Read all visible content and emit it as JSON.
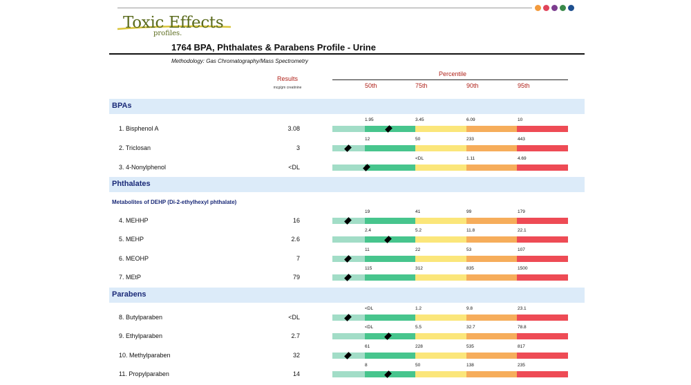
{
  "logo": {
    "main": "Toxic Effects",
    "sub": "profiles."
  },
  "brand_dots": [
    "#f39a3c",
    "#e0445a",
    "#7c3d8f",
    "#3a8a4a",
    "#1e4f8f"
  ],
  "title": "1764 BPA, Phthalates & Parabens Profile - Urine",
  "methodology": "Methodology: Gas Chromatography/Mass Spectrometry",
  "results_header": "Results",
  "results_units": "mcg/gm creatinine",
  "percentile_header": "Percentile",
  "percentile_columns": [
    "50th",
    "75th",
    "90th",
    "95th"
  ],
  "colors": {
    "mint": "#a2ddc7",
    "green": "#47c58d",
    "yellow": "#fbe67a",
    "orange": "#f6ad5b",
    "red": "#ee4b55"
  },
  "sections": [
    {
      "name": "BPAs",
      "subsection": "",
      "rows": [
        {
          "index": "1.",
          "name": "Bisphenol A",
          "result": "3.08",
          "ticks": [
            "1.95",
            "3.45",
            "6.09",
            "10"
          ],
          "marker": 0.24
        },
        {
          "index": "2.",
          "name": "Triclosan",
          "result": "3",
          "ticks": [
            "12",
            "50",
            "233",
            "443"
          ],
          "marker": 0.065
        },
        {
          "index": "3.",
          "name": "4-Nonylphenol",
          "result": "<DL",
          "ticks": [
            "",
            "<DL",
            "1.11",
            "4.69"
          ],
          "marker": 0.145
        }
      ]
    },
    {
      "name": "Phthalates",
      "subsection": "Metabolites of DEHP (Di-2-ethylhexyl phthalate)",
      "rows": [
        {
          "index": "4.",
          "name": "MEHHP",
          "result": "16",
          "ticks": [
            "19",
            "41",
            "99",
            "179"
          ],
          "marker": 0.065
        },
        {
          "index": "5.",
          "name": "MEHP",
          "result": "2.6",
          "ticks": [
            "2.4",
            "5.2",
            "11.8",
            "22.1"
          ],
          "marker": 0.235
        },
        {
          "index": "6.",
          "name": "MEOHP",
          "result": "7",
          "ticks": [
            "11",
            "22",
            "53",
            "107"
          ],
          "marker": 0.065
        },
        {
          "index": "7.",
          "name": "MEtP",
          "result": "79",
          "ticks": [
            "115",
            "312",
            "835",
            "1500"
          ],
          "marker": 0.065
        }
      ]
    },
    {
      "name": "Parabens",
      "subsection": "",
      "rows": [
        {
          "index": "8.",
          "name": "Butylparaben",
          "result": "<DL",
          "ticks": [
            "<DL",
            "1.2",
            "9.8",
            "23.1"
          ],
          "marker": 0.065
        },
        {
          "index": "9.",
          "name": "Ethylparaben",
          "result": "2.7",
          "ticks": [
            "<DL",
            "5.5",
            "32.7",
            "78.8"
          ],
          "marker": 0.235
        },
        {
          "index": "10.",
          "name": "Methylparaben",
          "result": "32",
          "ticks": [
            "61",
            "228",
            "535",
            "817"
          ],
          "marker": 0.065
        },
        {
          "index": "11.",
          "name": "Propylparaben",
          "result": "14",
          "ticks": [
            "8",
            "50",
            "138",
            "235"
          ],
          "marker": 0.235
        }
      ]
    }
  ]
}
